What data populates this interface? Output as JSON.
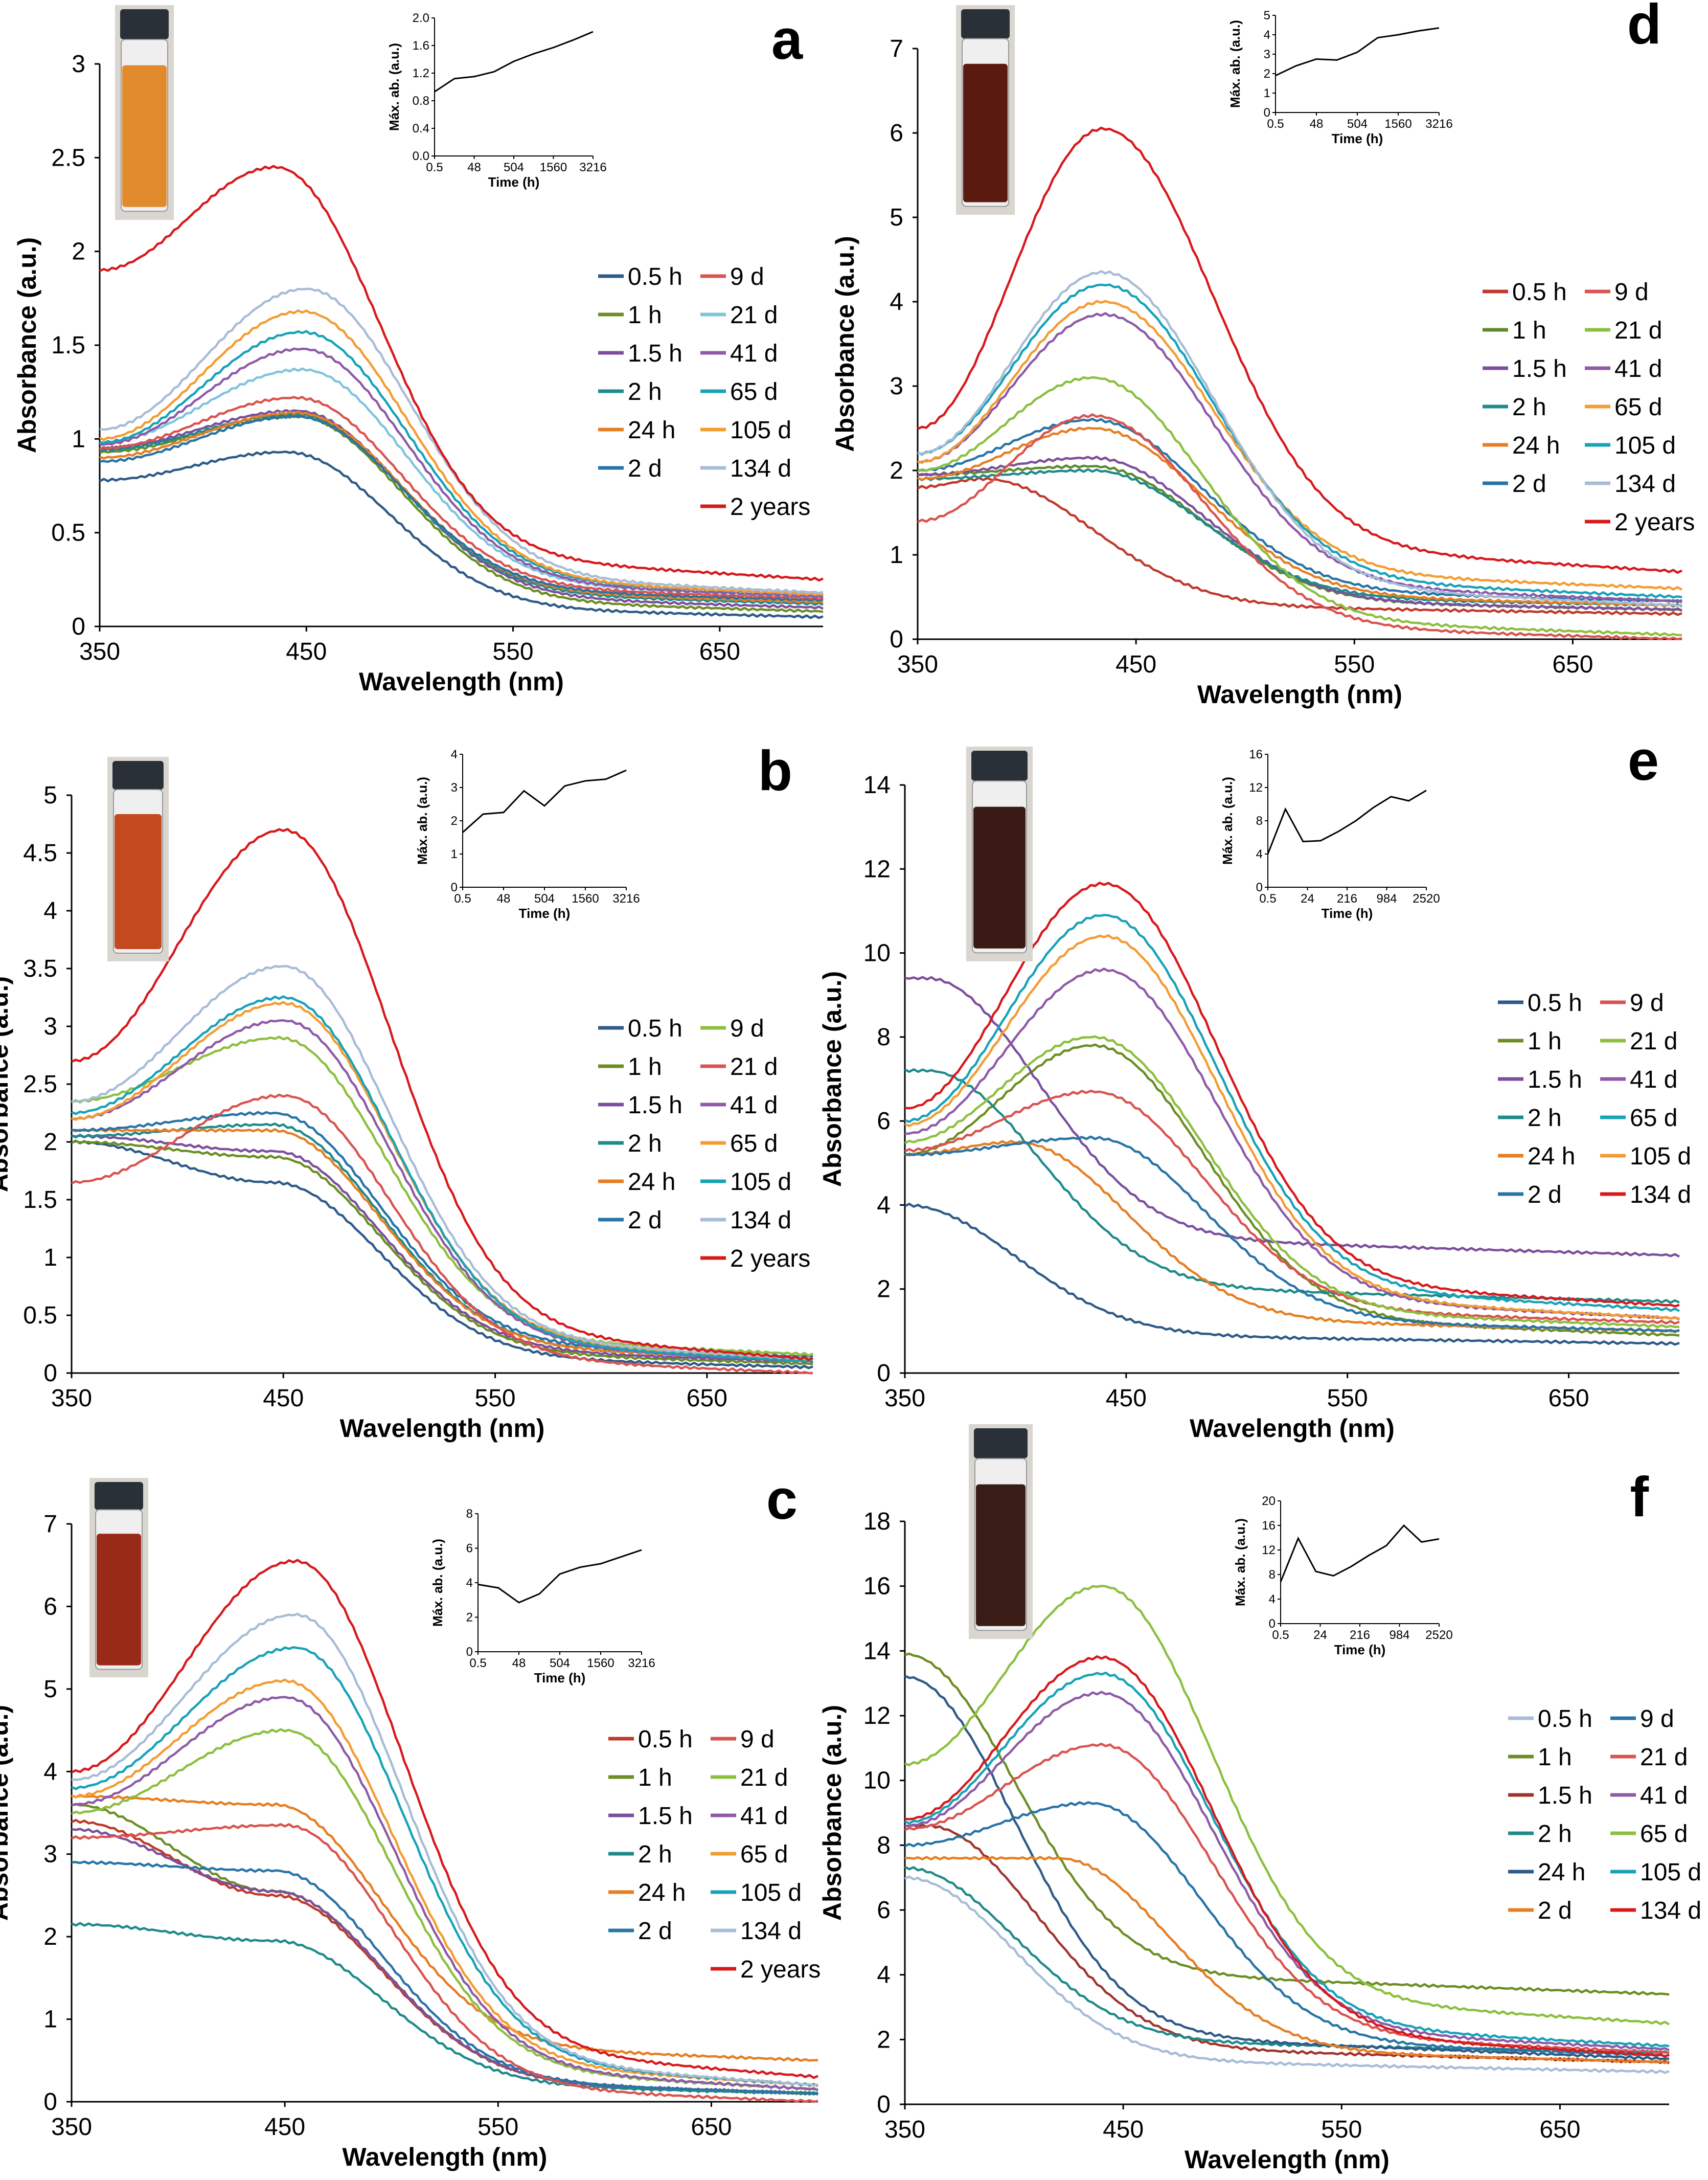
{
  "chart_data": [
    {
      "type": "line",
      "panel_label": "a",
      "xlabel": "Wavelength (nm)",
      "ylabel": "Absorbance (a.u.)",
      "xlim": [
        350,
        700
      ],
      "ylim": [
        0,
        3
      ],
      "xticks": [
        "350",
        "450",
        "550",
        "650"
      ],
      "yticks": [
        "0",
        "0.5",
        "1",
        "1.5",
        "2",
        "2.5",
        "3"
      ],
      "legend_columns": 2,
      "series": [
        {
          "name": "0.5 h",
          "color": "#2e5a87",
          "peak_x": 440,
          "peak_y": 0.93,
          "start_y": 0.78,
          "end_y": 0.05
        },
        {
          "name": "1 h",
          "color": "#6b8e23",
          "peak_x": 445,
          "peak_y": 1.12,
          "start_y": 0.93,
          "end_y": 0.08
        },
        {
          "name": "1.5 h",
          "color": "#7b4f9d",
          "peak_x": 445,
          "peak_y": 1.15,
          "start_y": 0.95,
          "end_y": 0.1
        },
        {
          "name": "2 h",
          "color": "#1f8a8a",
          "peak_x": 445,
          "peak_y": 1.13,
          "start_y": 0.94,
          "end_y": 0.12
        },
        {
          "name": "24 h",
          "color": "#e67e22",
          "peak_x": 445,
          "peak_y": 1.14,
          "start_y": 0.9,
          "end_y": 0.13
        },
        {
          "name": "2 d",
          "color": "#2874a6",
          "peak_x": 445,
          "peak_y": 1.12,
          "start_y": 0.88,
          "end_y": 0.14
        },
        {
          "name": "9 d",
          "color": "#d9534f",
          "peak_x": 445,
          "peak_y": 1.22,
          "start_y": 0.95,
          "end_y": 0.15
        },
        {
          "name": "21 d",
          "color": "#7fc4dd",
          "peak_x": 448,
          "peak_y": 1.37,
          "start_y": 0.98,
          "end_y": 0.16
        },
        {
          "name": "41 d",
          "color": "#8e5aa8",
          "peak_x": 448,
          "peak_y": 1.48,
          "start_y": 0.97,
          "end_y": 0.16
        },
        {
          "name": "65 d",
          "color": "#17a2b8",
          "peak_x": 448,
          "peak_y": 1.57,
          "start_y": 0.98,
          "end_y": 0.17
        },
        {
          "name": "105 d",
          "color": "#f39c32",
          "peak_x": 448,
          "peak_y": 1.68,
          "start_y": 1.0,
          "end_y": 0.17
        },
        {
          "name": "134 d",
          "color": "#a7bcd6",
          "peak_x": 450,
          "peak_y": 1.8,
          "start_y": 1.05,
          "end_y": 0.18
        },
        {
          "name": "2 years",
          "color": "#d7191c",
          "peak_x": 435,
          "peak_y": 2.45,
          "start_y": 1.9,
          "end_y": 0.25
        }
      ],
      "inset": {
        "xlabel": "Time (h)",
        "ylabel": "Máx. ab. (a.u.)",
        "x_tick_labels": [
          "0.5",
          "48",
          "504",
          "1560",
          "3216"
        ],
        "ylim": [
          0,
          2
        ],
        "yticks": [
          "0.0",
          "0.4",
          "0.8",
          "1.2",
          "1.6",
          "2.0"
        ],
        "values": [
          0.93,
          1.12,
          1.15,
          1.22,
          1.37,
          1.48,
          1.57,
          1.68,
          1.8
        ]
      }
    },
    {
      "type": "line",
      "panel_label": "d",
      "xlabel": "Wavelength (nm)",
      "ylabel": "Absorbance (a.u.)",
      "xlim": [
        350,
        700
      ],
      "ylim": [
        0,
        7
      ],
      "xticks": [
        "350",
        "450",
        "550",
        "650"
      ],
      "yticks": [
        "0",
        "1",
        "2",
        "3",
        "4",
        "5",
        "6",
        "7"
      ],
      "legend_columns": 2,
      "series": [
        {
          "name": "0.5 h",
          "color": "#c0392b",
          "peak_x": 380,
          "peak_y": 1.9,
          "start_y": 1.8,
          "end_y": 0.3
        },
        {
          "name": "1 h",
          "color": "#5d8a2f",
          "peak_x": 430,
          "peak_y": 2.05,
          "start_y": 1.95,
          "end_y": 0.35
        },
        {
          "name": "1.5 h",
          "color": "#7b4f9d",
          "peak_x": 430,
          "peak_y": 2.15,
          "start_y": 1.95,
          "end_y": 0.35
        },
        {
          "name": "2 h",
          "color": "#1f8a8a",
          "peak_x": 430,
          "peak_y": 2.0,
          "start_y": 1.9,
          "end_y": 0.4
        },
        {
          "name": "24 h",
          "color": "#e67e22",
          "peak_x": 430,
          "peak_y": 2.5,
          "start_y": 1.9,
          "end_y": 0.4
        },
        {
          "name": "2 d",
          "color": "#2874a6",
          "peak_x": 430,
          "peak_y": 2.6,
          "start_y": 2.0,
          "end_y": 0.45
        },
        {
          "name": "9 d",
          "color": "#d9534f",
          "peak_x": 430,
          "peak_y": 2.65,
          "start_y": 1.4,
          "end_y": 0.0
        },
        {
          "name": "21 d",
          "color": "#8cbf3f",
          "peak_x": 430,
          "peak_y": 3.1,
          "start_y": 2.0,
          "end_y": 0.05
        },
        {
          "name": "41 d",
          "color": "#8e5aa8",
          "peak_x": 435,
          "peak_y": 3.85,
          "start_y": 2.1,
          "end_y": 0.45
        },
        {
          "name": "65 d",
          "color": "#f39c32",
          "peak_x": 435,
          "peak_y": 4.0,
          "start_y": 2.1,
          "end_y": 0.6
        },
        {
          "name": "105 d",
          "color": "#17a2b8",
          "peak_x": 435,
          "peak_y": 4.2,
          "start_y": 2.2,
          "end_y": 0.5
        },
        {
          "name": "134 d",
          "color": "#a7bcd6",
          "peak_x": 435,
          "peak_y": 4.35,
          "start_y": 2.2,
          "end_y": 0.4
        },
        {
          "name": "2 years",
          "color": "#d7191c",
          "peak_x": 435,
          "peak_y": 6.05,
          "start_y": 2.5,
          "end_y": 0.8
        }
      ],
      "inset": {
        "xlabel": "Time (h)",
        "ylabel": "Máx. ab. (a.u.)",
        "x_tick_labels": [
          "0.5",
          "48",
          "504",
          "1560",
          "3216"
        ],
        "ylim": [
          0,
          5
        ],
        "yticks": [
          "0",
          "1",
          "2",
          "3",
          "4",
          "5"
        ],
        "values": [
          1.9,
          2.4,
          2.75,
          2.7,
          3.1,
          3.85,
          4.0,
          4.2,
          4.35
        ]
      }
    },
    {
      "type": "line",
      "panel_label": "b",
      "xlabel": "Wavelength (nm)",
      "ylabel": "Absorbance (a.u.)",
      "xlim": [
        350,
        700
      ],
      "ylim": [
        0,
        5
      ],
      "xticks": [
        "350",
        "450",
        "550",
        "650"
      ],
      "yticks": [
        "0",
        "0.5",
        "1",
        "1.5",
        "2",
        "2.5",
        "3",
        "3.5",
        "4",
        "4.5",
        "5"
      ],
      "legend_columns": 2,
      "series": [
        {
          "name": "0.5 h",
          "color": "#2e5a87",
          "peak_x": 445,
          "peak_y": 1.65,
          "start_y": 2.0,
          "end_y": 0.05
        },
        {
          "name": "1 h",
          "color": "#6b8e23",
          "peak_x": 445,
          "peak_y": 1.87,
          "start_y": 2.0,
          "end_y": 0.08
        },
        {
          "name": "1.5 h",
          "color": "#7b4f9d",
          "peak_x": 445,
          "peak_y": 1.92,
          "start_y": 2.05,
          "end_y": 0.1
        },
        {
          "name": "2 h",
          "color": "#1f8a8a",
          "peak_x": 445,
          "peak_y": 2.15,
          "start_y": 2.05,
          "end_y": 0.12
        },
        {
          "name": "24 h",
          "color": "#e67e22",
          "peak_x": 445,
          "peak_y": 2.1,
          "start_y": 2.1,
          "end_y": 0.12
        },
        {
          "name": "2 d",
          "color": "#2874a6",
          "peak_x": 445,
          "peak_y": 2.25,
          "start_y": 2.1,
          "end_y": 0.14
        },
        {
          "name": "9 d",
          "color": "#8cbf3f",
          "peak_x": 448,
          "peak_y": 2.9,
          "start_y": 2.35,
          "end_y": 0.16
        },
        {
          "name": "21 d",
          "color": "#d9534f",
          "peak_x": 450,
          "peak_y": 2.4,
          "start_y": 1.65,
          "end_y": 0.0
        },
        {
          "name": "41 d",
          "color": "#8e5aa8",
          "peak_x": 450,
          "peak_y": 3.05,
          "start_y": 2.2,
          "end_y": 0.1
        },
        {
          "name": "65 d",
          "color": "#f39c32",
          "peak_x": 450,
          "peak_y": 3.2,
          "start_y": 2.2,
          "end_y": 0.12
        },
        {
          "name": "105 d",
          "color": "#17a2b8",
          "peak_x": 450,
          "peak_y": 3.25,
          "start_y": 2.25,
          "end_y": 0.1
        },
        {
          "name": "134 d",
          "color": "#a7bcd6",
          "peak_x": 450,
          "peak_y": 3.52,
          "start_y": 2.35,
          "end_y": 0.12
        },
        {
          "name": "2 years",
          "color": "#d7191c",
          "peak_x": 450,
          "peak_y": 4.7,
          "start_y": 2.7,
          "end_y": 0.12
        }
      ],
      "inset": {
        "xlabel": "Time (h)",
        "ylabel": "Máx. ab. (a.u.)",
        "x_tick_labels": [
          "0.5",
          "48",
          "504",
          "1560",
          "3216"
        ],
        "ylim": [
          0,
          4
        ],
        "yticks": [
          "0",
          "1",
          "2",
          "3",
          "4"
        ],
        "values": [
          1.65,
          2.2,
          2.25,
          2.9,
          2.45,
          3.05,
          3.2,
          3.25,
          3.52
        ]
      }
    },
    {
      "type": "line",
      "panel_label": "e",
      "xlabel": "Wavelength (nm)",
      "ylabel": "Absorbance (a.u.)",
      "xlim": [
        350,
        700
      ],
      "ylim": [
        0,
        14
      ],
      "xticks": [
        "350",
        "450",
        "550",
        "650"
      ],
      "yticks": [
        "0",
        "2",
        "4",
        "6",
        "8",
        "10",
        "12",
        "14"
      ],
      "legend_columns": 2,
      "series": [
        {
          "name": "0.5 h",
          "color": "#2e5a87",
          "peak_x": 350,
          "peak_y": 4.0,
          "start_y": 4.0,
          "end_y": 0.7
        },
        {
          "name": "1 h",
          "color": "#6b8e23",
          "peak_x": 435,
          "peak_y": 7.8,
          "start_y": 5.2,
          "end_y": 0.9
        },
        {
          "name": "1.5 h",
          "color": "#7b4f9d",
          "peak_x": 360,
          "peak_y": 9.4,
          "start_y": 9.4,
          "end_y": 2.8
        },
        {
          "name": "2 h",
          "color": "#1f8a8a",
          "peak_x": 360,
          "peak_y": 7.2,
          "start_y": 7.2,
          "end_y": 1.7
        },
        {
          "name": "24 h",
          "color": "#e67e22",
          "peak_x": 400,
          "peak_y": 5.5,
          "start_y": 5.2,
          "end_y": 1.0
        },
        {
          "name": "2 d",
          "color": "#2874a6",
          "peak_x": 435,
          "peak_y": 5.6,
          "start_y": 5.2,
          "end_y": 1.0
        },
        {
          "name": "9 d",
          "color": "#d9534f",
          "peak_x": 435,
          "peak_y": 6.7,
          "start_y": 5.3,
          "end_y": 1.2
        },
        {
          "name": "21 d",
          "color": "#8cbf3f",
          "peak_x": 435,
          "peak_y": 8.0,
          "start_y": 5.5,
          "end_y": 1.1
        },
        {
          "name": "41 d",
          "color": "#8e5aa8",
          "peak_x": 440,
          "peak_y": 9.6,
          "start_y": 5.7,
          "end_y": 1.3
        },
        {
          "name": "65 d",
          "color": "#17a2b8",
          "peak_x": 440,
          "peak_y": 10.9,
          "start_y": 6.0,
          "end_y": 1.5
        },
        {
          "name": "105 d",
          "color": "#f39c32",
          "peak_x": 440,
          "peak_y": 10.4,
          "start_y": 5.9,
          "end_y": 1.3
        },
        {
          "name": "134 d",
          "color": "#d7191c",
          "peak_x": 440,
          "peak_y": 11.65,
          "start_y": 6.3,
          "end_y": 1.6
        }
      ],
      "inset": {
        "xlabel": "Time (h)",
        "ylabel": "Máx. ab. (a.u.)",
        "x_tick_labels": [
          "0.5",
          "24",
          "216",
          "984",
          "2520"
        ],
        "ylim": [
          0,
          16
        ],
        "yticks": [
          "0",
          "4",
          "8",
          "12",
          "16"
        ],
        "values": [
          4.0,
          9.4,
          5.5,
          5.6,
          6.7,
          8.0,
          9.6,
          10.9,
          10.4,
          11.65
        ]
      }
    },
    {
      "type": "line",
      "panel_label": "c",
      "xlabel": "Wavelength (nm)",
      "ylabel": "Absorbance (a.u.)",
      "xlim": [
        350,
        700
      ],
      "ylim": [
        0,
        7
      ],
      "xticks": [
        "350",
        "450",
        "550",
        "650"
      ],
      "yticks": [
        "0",
        "1",
        "2",
        "3",
        "4",
        "5",
        "6",
        "7"
      ],
      "legend_columns": 2,
      "series": [
        {
          "name": "0.5 h",
          "color": "#c0392b",
          "peak_x": 445,
          "peak_y": 2.5,
          "start_y": 3.4,
          "end_y": 0.1
        },
        {
          "name": "1 h",
          "color": "#6b8e23",
          "peak_x": 445,
          "peak_y": 2.55,
          "start_y": 3.6,
          "end_y": 0.1
        },
        {
          "name": "1.5 h",
          "color": "#7b4f9d",
          "peak_x": 445,
          "peak_y": 2.55,
          "start_y": 3.3,
          "end_y": 0.1
        },
        {
          "name": "2 h",
          "color": "#1f8a8a",
          "peak_x": 445,
          "peak_y": 1.95,
          "start_y": 2.15,
          "end_y": 0.1
        },
        {
          "name": "24 h",
          "color": "#e67e22",
          "peak_x": 445,
          "peak_y": 3.6,
          "start_y": 3.7,
          "end_y": 0.5
        },
        {
          "name": "2 d",
          "color": "#2874a6",
          "peak_x": 445,
          "peak_y": 2.8,
          "start_y": 2.9,
          "end_y": 0.1
        },
        {
          "name": "9 d",
          "color": "#d9534f",
          "peak_x": 450,
          "peak_y": 3.35,
          "start_y": 3.2,
          "end_y": 0.0
        },
        {
          "name": "21 d",
          "color": "#8cbf3f",
          "peak_x": 450,
          "peak_y": 4.5,
          "start_y": 3.5,
          "end_y": 0.15
        },
        {
          "name": "41 d",
          "color": "#8e5aa8",
          "peak_x": 450,
          "peak_y": 4.9,
          "start_y": 3.6,
          "end_y": 0.15
        },
        {
          "name": "65 d",
          "color": "#f39c32",
          "peak_x": 450,
          "peak_y": 5.1,
          "start_y": 3.7,
          "end_y": 0.2
        },
        {
          "name": "105 d",
          "color": "#17a2b8",
          "peak_x": 455,
          "peak_y": 5.5,
          "start_y": 3.8,
          "end_y": 0.2
        },
        {
          "name": "134 d",
          "color": "#a7bcd6",
          "peak_x": 455,
          "peak_y": 5.9,
          "start_y": 3.9,
          "end_y": 0.2
        },
        {
          "name": "2 years",
          "color": "#d7191c",
          "peak_x": 455,
          "peak_y": 6.55,
          "start_y": 4.0,
          "end_y": 0.3
        }
      ],
      "inset": {
        "xlabel": "Time (h)",
        "ylabel": "Máx. ab. (a.u.)",
        "x_tick_labels": [
          "0.5",
          "48",
          "504",
          "1560",
          "3216"
        ],
        "ylim": [
          0,
          8
        ],
        "yticks": [
          "0",
          "2",
          "4",
          "6",
          "8"
        ],
        "values": [
          3.9,
          3.7,
          2.85,
          3.35,
          4.5,
          4.9,
          5.1,
          5.5,
          5.9
        ]
      }
    },
    {
      "type": "line",
      "panel_label": "f",
      "xlabel": "Wavelength (nm)",
      "ylabel": "Absorbance (a.u.)",
      "xlim": [
        350,
        700
      ],
      "ylim": [
        0,
        18
      ],
      "xticks": [
        "350",
        "450",
        "550",
        "650"
      ],
      "yticks": [
        "0",
        "2",
        "4",
        "6",
        "8",
        "10",
        "12",
        "14",
        "16",
        "18"
      ],
      "legend_columns": 2,
      "series": [
        {
          "name": "0.5 h",
          "color": "#a7bcd6",
          "peak_x": 350,
          "peak_y": 7.0,
          "start_y": 7.0,
          "end_y": 1.0
        },
        {
          "name": "1 h",
          "color": "#6b8e23",
          "peak_x": 350,
          "peak_y": 13.9,
          "start_y": 13.9,
          "end_y": 3.4
        },
        {
          "name": "1.5 h",
          "color": "#a0342c",
          "peak_x": 360,
          "peak_y": 8.6,
          "start_y": 8.6,
          "end_y": 1.3
        },
        {
          "name": "2 h",
          "color": "#1f8a8a",
          "peak_x": 350,
          "peak_y": 7.3,
          "start_y": 7.3,
          "end_y": 1.6
        },
        {
          "name": "24 h",
          "color": "#2e5a87",
          "peak_x": 350,
          "peak_y": 13.2,
          "start_y": 13.2,
          "end_y": 1.4
        },
        {
          "name": "2 d",
          "color": "#e67e22",
          "peak_x": 420,
          "peak_y": 7.6,
          "start_y": 7.6,
          "end_y": 1.3
        },
        {
          "name": "9 d",
          "color": "#2874a6",
          "peak_x": 435,
          "peak_y": 9.3,
          "start_y": 8.0,
          "end_y": 1.5
        },
        {
          "name": "21 d",
          "color": "#d9534f",
          "peak_x": 440,
          "peak_y": 11.1,
          "start_y": 8.5,
          "end_y": 1.6
        },
        {
          "name": "41 d",
          "color": "#8e5aa8",
          "peak_x": 440,
          "peak_y": 12.7,
          "start_y": 8.6,
          "end_y": 1.7
        },
        {
          "name": "65 d",
          "color": "#8cbf3f",
          "peak_x": 440,
          "peak_y": 16.0,
          "start_y": 10.5,
          "end_y": 2.5
        },
        {
          "name": "105 d",
          "color": "#17a2b8",
          "peak_x": 440,
          "peak_y": 13.3,
          "start_y": 8.7,
          "end_y": 1.8
        },
        {
          "name": "134 d",
          "color": "#d7191c",
          "peak_x": 440,
          "peak_y": 13.8,
          "start_y": 8.8,
          "end_y": 1.5
        }
      ],
      "inset": {
        "xlabel": "Time (h)",
        "ylabel": "Máx. ab. (a.u.)",
        "x_tick_labels": [
          "0.5",
          "24",
          "216",
          "984",
          "2520"
        ],
        "ylim": [
          0,
          20
        ],
        "yticks": [
          "0",
          "4",
          "8",
          "12",
          "16",
          "20"
        ],
        "values": [
          6.8,
          13.9,
          8.5,
          7.8,
          9.3,
          11.1,
          12.7,
          16.0,
          13.3,
          13.8
        ]
      }
    }
  ]
}
